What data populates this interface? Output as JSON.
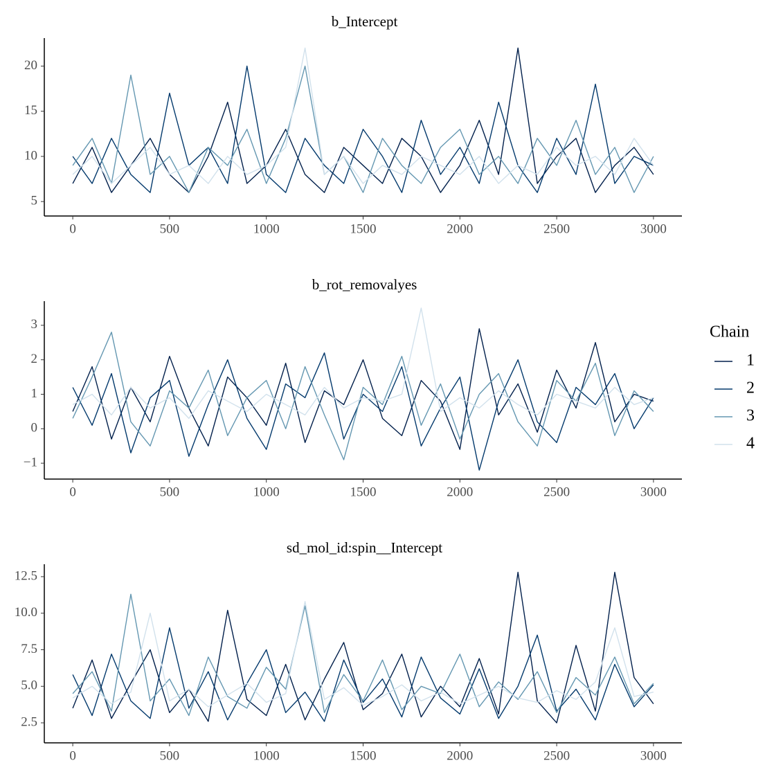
{
  "chart_data": [
    {
      "type": "line",
      "title": "b_Intercept",
      "x": [
        0,
        100,
        200,
        300,
        400,
        500,
        600,
        700,
        800,
        900,
        1000,
        1100,
        1200,
        1300,
        1400,
        1500,
        1600,
        1700,
        1800,
        1900,
        2000,
        2100,
        2200,
        2300,
        2400,
        2500,
        2600,
        2700,
        2800,
        2900,
        3000
      ],
      "series": [
        {
          "color": "#011f4b",
          "values": [
            7,
            11,
            6,
            9,
            12,
            8,
            6,
            10,
            16,
            7,
            9,
            13,
            8,
            6,
            11,
            9,
            7,
            12,
            10,
            6,
            9,
            14,
            8,
            22,
            7,
            10,
            12,
            6,
            9,
            11,
            8
          ]
        },
        {
          "color": "#03396c",
          "values": [
            10,
            7,
            12,
            8,
            6,
            17,
            9,
            11,
            7,
            20,
            8,
            6,
            12,
            9,
            7,
            13,
            10,
            6,
            14,
            8,
            11,
            7,
            16,
            9,
            6,
            12,
            8,
            18,
            7,
            10,
            9
          ]
        },
        {
          "color": "#6497b1",
          "values": [
            9,
            12,
            7,
            19,
            8,
            10,
            6,
            11,
            9,
            13,
            7,
            12,
            20,
            8,
            10,
            6,
            12,
            9,
            7,
            11,
            13,
            8,
            10,
            7,
            12,
            9,
            14,
            8,
            11,
            6,
            10
          ]
        },
        {
          "color": "#d1e1ec",
          "values": [
            8,
            10,
            7,
            9,
            11,
            8,
            9,
            7,
            10,
            8,
            9,
            11,
            22,
            8,
            10,
            7,
            9,
            8,
            10,
            9,
            8,
            10,
            7,
            9,
            8,
            11,
            9,
            10,
            8,
            12,
            9
          ]
        }
      ],
      "xlim": [
        -147,
        3147
      ],
      "xticks": [
        0,
        500,
        1000,
        1500,
        2000,
        2500,
        3000
      ],
      "ylim": [
        3.4,
        23.1
      ],
      "yticks": [
        5,
        10,
        15,
        20
      ]
    },
    {
      "type": "line",
      "title": "b_rot_removalyes",
      "legend_title": "Chain",
      "x": [
        0,
        100,
        200,
        300,
        400,
        500,
        600,
        700,
        800,
        900,
        1000,
        1100,
        1200,
        1300,
        1400,
        1500,
        1600,
        1700,
        1800,
        1900,
        2000,
        2100,
        2200,
        2300,
        2400,
        2500,
        2600,
        2700,
        2800,
        2900,
        3000
      ],
      "series": [
        {
          "name": "1",
          "color": "#011f4b",
          "values": [
            0.5,
            1.8,
            -0.3,
            1.2,
            0.2,
            2.1,
            0.6,
            -0.5,
            1.5,
            0.9,
            0.1,
            1.9,
            -0.4,
            1.1,
            0.7,
            2.0,
            0.3,
            -0.2,
            1.4,
            0.8,
            -0.6,
            2.9,
            0.4,
            1.3,
            -0.1,
            1.7,
            0.6,
            2.5,
            0.2,
            1.0,
            0.8
          ]
        },
        {
          "name": "2",
          "color": "#03396c",
          "values": [
            1.2,
            0.1,
            1.6,
            -0.7,
            0.9,
            1.4,
            -0.8,
            0.7,
            2.0,
            0.3,
            -0.6,
            1.3,
            0.9,
            2.2,
            -0.3,
            1.0,
            0.5,
            1.8,
            -0.5,
            0.6,
            1.5,
            -1.2,
            0.8,
            2.0,
            0.2,
            -0.4,
            1.2,
            0.7,
            1.6,
            0.0,
            0.9
          ]
        },
        {
          "name": "3",
          "color": "#6497b1",
          "values": [
            0.3,
            1.5,
            2.8,
            0.2,
            -0.5,
            1.1,
            0.6,
            1.7,
            -0.2,
            0.9,
            1.4,
            0.0,
            1.8,
            0.4,
            -0.9,
            1.2,
            0.7,
            2.1,
            0.1,
            1.3,
            -0.3,
            1.0,
            1.6,
            0.2,
            -0.5,
            1.4,
            0.8,
            1.9,
            -0.2,
            1.1,
            0.5
          ]
        },
        {
          "name": "4",
          "color": "#d1e1ec",
          "values": [
            0.7,
            1.0,
            0.4,
            1.2,
            0.6,
            0.9,
            0.3,
            1.1,
            0.8,
            0.5,
            1.0,
            0.7,
            0.4,
            1.2,
            0.6,
            0.9,
            0.8,
            1.0,
            3.5,
            0.5,
            0.9,
            0.6,
            1.1,
            0.7,
            0.4,
            1.0,
            0.8,
            0.6,
            1.2,
            0.7,
            0.9
          ]
        }
      ],
      "xlim": [
        -147,
        3147
      ],
      "xticks": [
        0,
        500,
        1000,
        1500,
        2000,
        2500,
        3000
      ],
      "ylim": [
        -1.46,
        3.7
      ],
      "yticks": [
        {
          "value": -1,
          "label": "−1"
        },
        0,
        1,
        2,
        3
      ]
    },
    {
      "type": "line",
      "title": "sd_mol_id:spin__Intercept",
      "x": [
        0,
        100,
        200,
        300,
        400,
        500,
        600,
        700,
        800,
        900,
        1000,
        1100,
        1200,
        1300,
        1400,
        1500,
        1600,
        1700,
        1800,
        1900,
        2000,
        2100,
        2200,
        2300,
        2400,
        2500,
        2600,
        2700,
        2800,
        2900,
        3000
      ],
      "series": [
        {
          "color": "#011f4b",
          "values": [
            3.5,
            6.8,
            2.8,
            5.2,
            7.5,
            3.2,
            4.8,
            2.6,
            10.2,
            4.1,
            3.0,
            6.5,
            2.7,
            5.5,
            8.0,
            3.4,
            4.5,
            7.2,
            2.9,
            5.0,
            3.6,
            6.9,
            3.1,
            12.8,
            4.0,
            2.5,
            7.8,
            3.3,
            12.8,
            5.6,
            3.8
          ]
        },
        {
          "color": "#03396c",
          "values": [
            5.8,
            3.0,
            7.2,
            4.0,
            2.8,
            9.0,
            3.5,
            6.0,
            2.7,
            5.2,
            7.5,
            3.2,
            4.6,
            2.6,
            6.8,
            3.9,
            5.5,
            2.9,
            7.0,
            4.2,
            3.1,
            6.2,
            2.8,
            5.0,
            8.5,
            3.3,
            4.8,
            2.7,
            6.5,
            3.6,
            5.1
          ]
        },
        {
          "color": "#6497b1",
          "values": [
            4.5,
            6.0,
            3.3,
            11.3,
            4.0,
            5.5,
            3.0,
            7.0,
            4.3,
            3.5,
            6.3,
            4.8,
            10.5,
            3.2,
            5.8,
            4.0,
            6.8,
            3.4,
            5.0,
            4.5,
            7.2,
            3.6,
            5.3,
            4.1,
            6.0,
            3.2,
            5.6,
            4.4,
            7.0,
            3.8,
            5.2
          ]
        },
        {
          "color": "#d1e1ec",
          "values": [
            4.2,
            5.0,
            3.8,
            4.6,
            10.0,
            4.0,
            4.8,
            3.6,
            4.4,
            5.2,
            3.9,
            4.5,
            10.8,
            4.1,
            4.9,
            3.7,
            4.3,
            5.1,
            4.0,
            4.6,
            3.8,
            4.4,
            5.0,
            4.2,
            3.9,
            4.7,
            4.1,
            5.3,
            9.0,
            4.3,
            4.6
          ]
        }
      ],
      "xlim": [
        -147,
        3147
      ],
      "xticks": [
        0,
        500,
        1000,
        1500,
        2000,
        2500,
        3000
      ],
      "ylim": [
        1.13,
        13.35
      ],
      "yticks": [
        2.5,
        {
          "value": 5,
          "label": "5.0"
        },
        7.5,
        {
          "value": 10,
          "label": "10.0"
        },
        12.5
      ]
    }
  ]
}
